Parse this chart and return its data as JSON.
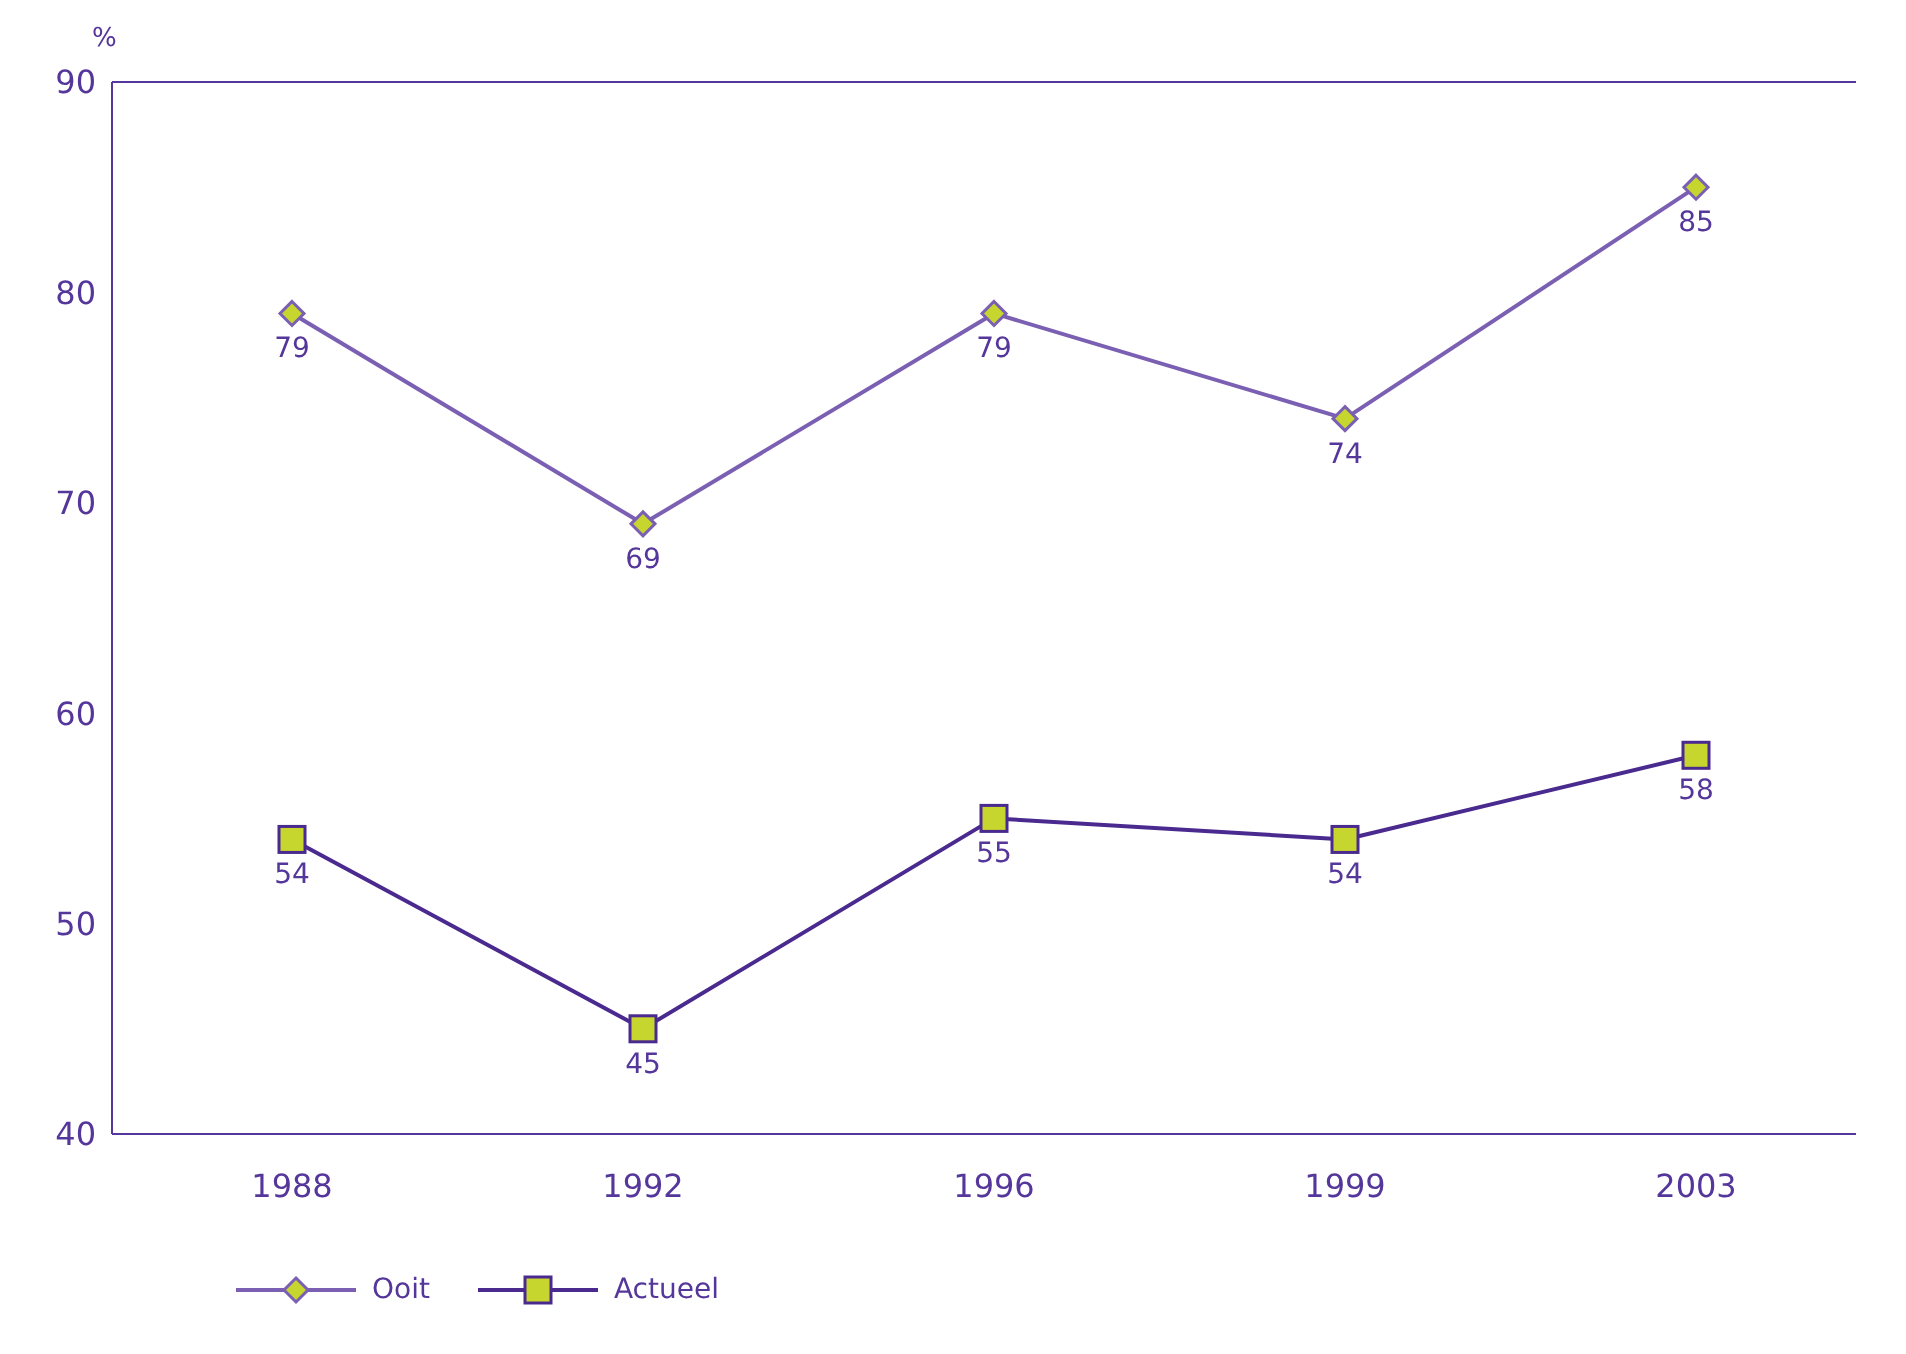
{
  "chart_data": {
    "type": "line",
    "ylabel": "%",
    "categories": [
      "1988",
      "1992",
      "1996",
      "1999",
      "2003"
    ],
    "series": [
      {
        "name": "Ooit",
        "color": "#7a5fb3",
        "values": [
          79,
          69,
          79,
          74,
          85
        ],
        "marker": "diamond"
      },
      {
        "name": "Actueel",
        "color": "#4a2a8f",
        "values": [
          54,
          45,
          55,
          54,
          58
        ],
        "marker": "square"
      }
    ],
    "ylim": [
      40,
      90
    ],
    "yticks": [
      40,
      50,
      60,
      70,
      80,
      90
    ],
    "grid": false,
    "legend": "bottom left",
    "data_labels": true,
    "line_style": "solid"
  }
}
